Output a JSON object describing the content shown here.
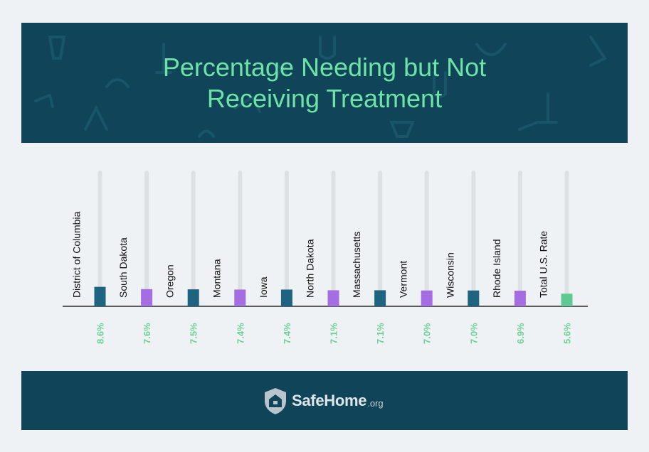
{
  "chart_data": {
    "type": "bar",
    "title": "Percentage Needing but Not Receiving Treatment",
    "title_lines": [
      "Percentage Needing but Not",
      "Receiving Treatment"
    ],
    "categories": [
      "District of Columbia",
      "South Dakota",
      "Oregon",
      "Montana",
      "Iowa",
      "North Dakota",
      "Massachusetts",
      "Vermont",
      "Wisconsin",
      "Rhode Island",
      "Total U.S. Rate"
    ],
    "values": [
      8.6,
      7.6,
      7.5,
      7.4,
      7.4,
      7.1,
      7.1,
      7.0,
      7.0,
      6.9,
      5.6
    ],
    "value_labels": [
      "8.6%",
      "7.6%",
      "7.5%",
      "7.4%",
      "7.4%",
      "7.1%",
      "7.1%",
      "7.0%",
      "7.0%",
      "6.9%",
      "5.6%"
    ],
    "bar_colors": [
      "#1e6480",
      "#a56de2",
      "#1e6480",
      "#a56de2",
      "#1e6480",
      "#a56de2",
      "#1e6480",
      "#a56de2",
      "#1e6480",
      "#a56de2",
      "#5fc996"
    ],
    "ylim": [
      0,
      60
    ],
    "xlabel": "",
    "ylabel": "",
    "legend": "none",
    "grid": false
  },
  "colors": {
    "header_bg": "#0f4459",
    "title_text": "#6ee3a6",
    "value_label": "#6ecf98",
    "track": "#dde1e4",
    "axis": "#2a2a2a"
  },
  "footer": {
    "logo_icon": "house-shield-icon",
    "brand_name": "SafeHome",
    "brand_tld": ".org"
  }
}
